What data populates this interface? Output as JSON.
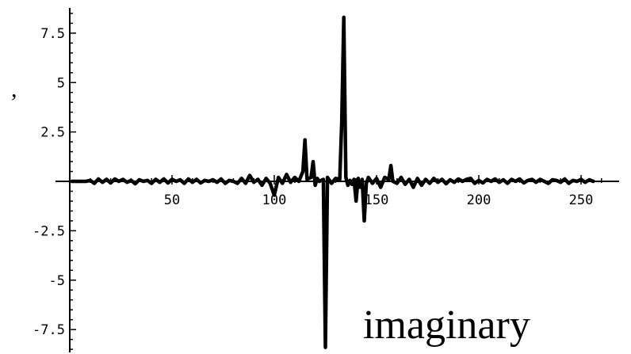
{
  "chart_data": {
    "type": "line",
    "title": "",
    "xlabel": "",
    "ylabel": "",
    "xlim": [
      0,
      262
    ],
    "ylim": [
      -8.7,
      8.9
    ],
    "grid": false,
    "legend": "none",
    "color": "#000000",
    "x_ticks": [
      {
        "value": 50,
        "label": "50"
      },
      {
        "value": 100,
        "label": "100"
      },
      {
        "value": 150,
        "label": "150"
      },
      {
        "value": 200,
        "label": "200"
      },
      {
        "value": 250,
        "label": "250"
      }
    ],
    "y_ticks": [
      {
        "value": 7.5,
        "label": "7.5"
      },
      {
        "value": 5,
        "label": "5"
      },
      {
        "value": 2.5,
        "label": "2.5"
      },
      {
        "value": -2.5,
        "label": "-2.5"
      },
      {
        "value": -5,
        "label": "-5"
      },
      {
        "value": -7.5,
        "label": "-7.5"
      }
    ],
    "series": [
      {
        "x": [
          1,
          8,
          10,
          12,
          14,
          16,
          18,
          20,
          22,
          24,
          26,
          28,
          30,
          32,
          34,
          36,
          38,
          40,
          42,
          44,
          46,
          48,
          50,
          52,
          54,
          56,
          58,
          60,
          62,
          64,
          66,
          68,
          70,
          72,
          74,
          76,
          78,
          80,
          82,
          84,
          86,
          88,
          90,
          92,
          94,
          96,
          98,
          100,
          102,
          104,
          106,
          108,
          110,
          112,
          114,
          115,
          116,
          118,
          119,
          120,
          121,
          122,
          124,
          125,
          126,
          128,
          130,
          132,
          133,
          134,
          135,
          136,
          137,
          138,
          139,
          140,
          141,
          142,
          143,
          144,
          145,
          146,
          148,
          150,
          152,
          154,
          156,
          157,
          158,
          160,
          162,
          164,
          166,
          168,
          170,
          172,
          174,
          176,
          178,
          180,
          182,
          184,
          186,
          188,
          190,
          192,
          194,
          196,
          198,
          200,
          202,
          204,
          206,
          208,
          210,
          212,
          214,
          216,
          218,
          220,
          222,
          224,
          226,
          228,
          230,
          232,
          234,
          236,
          238,
          240,
          242,
          244,
          246,
          248,
          250,
          252,
          254,
          256
        ],
        "values": [
          0,
          0,
          0.05,
          -0.1,
          0.12,
          -0.05,
          0.1,
          -0.08,
          0.12,
          0,
          0.1,
          -0.05,
          0.05,
          -0.12,
          0.08,
          0,
          0.05,
          -0.1,
          0.1,
          -0.05,
          0.12,
          -0.08,
          0.1,
          0,
          0.08,
          -0.1,
          0.12,
          -0.05,
          0.1,
          -0.08,
          0.05,
          0,
          0.08,
          -0.05,
          0.12,
          -0.1,
          0.05,
          0,
          -0.1,
          0.15,
          -0.1,
          0.3,
          -0.05,
          0.1,
          -0.2,
          0.15,
          -0.1,
          -0.7,
          0.2,
          -0.1,
          0.35,
          -0.05,
          0.2,
          0,
          0.5,
          2.1,
          0.1,
          0.2,
          1.0,
          -0.2,
          0.15,
          0,
          0.1,
          -8.4,
          0.2,
          -0.1,
          0.15,
          0.1,
          3.0,
          8.3,
          0.2,
          -0.2,
          0.05,
          -0.15,
          0.1,
          -1.0,
          0.15,
          -0.3,
          0.1,
          -2.0,
          -0.1,
          0.2,
          -0.1,
          0.15,
          -0.3,
          0.2,
          0.1,
          0.8,
          0,
          -0.1,
          0.2,
          -0.15,
          0.1,
          -0.3,
          0.15,
          -0.2,
          0.1,
          -0.1,
          0.15,
          -0.05,
          0.1,
          -0.12,
          0.08,
          -0.05,
          0.12,
          0,
          0.1,
          0.15,
          -0.1,
          0.05,
          -0.08,
          0.1,
          0,
          0.12,
          -0.05,
          0.08,
          -0.1,
          0.1,
          0,
          0.12,
          -0.08,
          0.05,
          0.1,
          -0.05,
          0.1,
          0,
          -0.1,
          0.08,
          0.05,
          -0.05,
          0.12,
          -0.1,
          0.05,
          0,
          0.1,
          -0.05,
          0.08,
          0
        ]
      }
    ],
    "annotation": "imaginary",
    "side_mark": ","
  }
}
